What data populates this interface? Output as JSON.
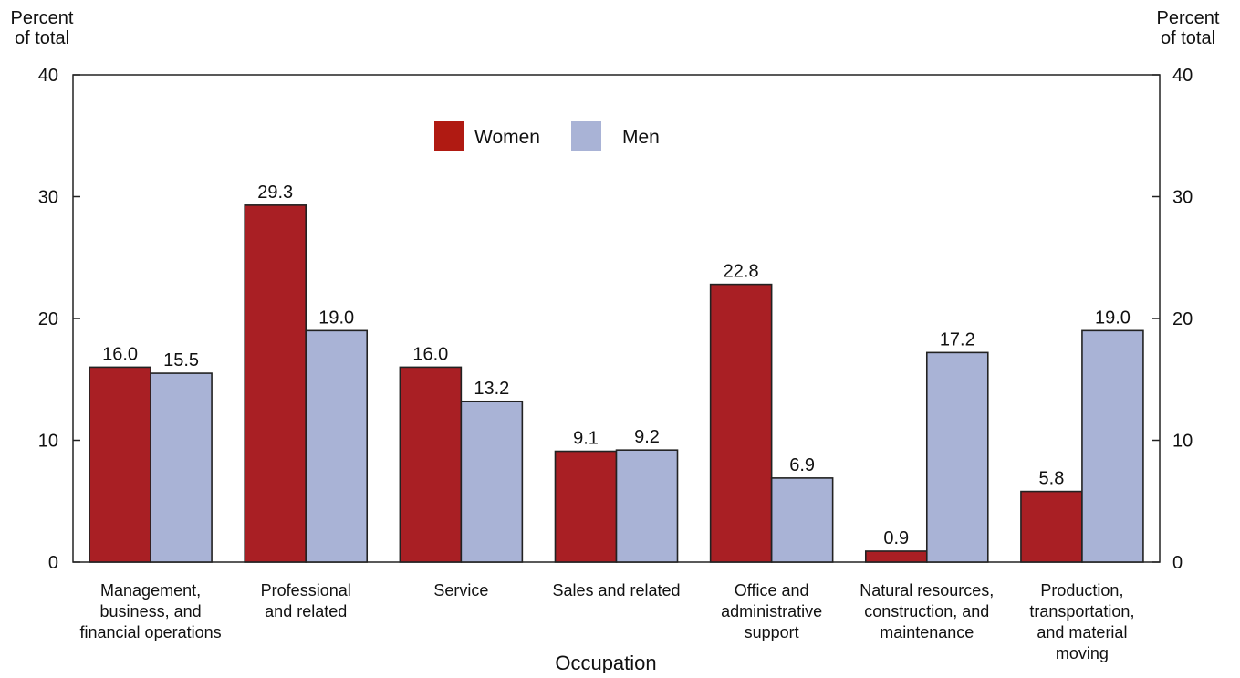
{
  "chart_data": {
    "type": "bar",
    "title": "",
    "xlabel": "Occupation",
    "ylabel_left": "Percent\nof total",
    "ylabel_right": "Percent\nof total",
    "ylim": [
      0,
      40
    ],
    "yticks": [
      0,
      10,
      20,
      30,
      40
    ],
    "grid": false,
    "legend_position": "top-center",
    "categories": [
      "Management,\nbusiness, and\nfinancial operations",
      "Professional\nand related",
      "Service",
      "Sales and related",
      "Office and\nadministrative\nsupport",
      "Natural resources,\nconstruction, and\nmaintenance",
      "Production,\ntransportation,\nand material\nmoving"
    ],
    "series": [
      {
        "name": "Women",
        "color": "#a91f24",
        "values": [
          16.0,
          29.3,
          16.0,
          9.1,
          22.8,
          0.9,
          5.8
        ],
        "labels": [
          "16.0",
          "29.3",
          "16.0",
          "9.1",
          "22.8",
          "0.9",
          "5.8"
        ]
      },
      {
        "name": "Men",
        "color": "#a9b3d6",
        "values": [
          15.5,
          19.0,
          13.2,
          9.2,
          6.9,
          17.2,
          19.0
        ],
        "labels": [
          "15.5",
          "19.0",
          "13.2",
          "9.2",
          "6.9",
          "17.2",
          "19.0"
        ]
      }
    ]
  }
}
